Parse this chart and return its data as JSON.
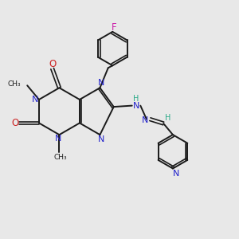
{
  "background_color": "#e8e8e8",
  "bond_color": "#1a1a1a",
  "N_color": "#2222cc",
  "O_color": "#cc2222",
  "F_color": "#cc22aa",
  "H_color": "#2aaa88",
  "figsize": [
    3.0,
    3.0
  ],
  "dpi": 100,
  "xlim": [
    0,
    10
  ],
  "ylim": [
    0,
    10
  ]
}
